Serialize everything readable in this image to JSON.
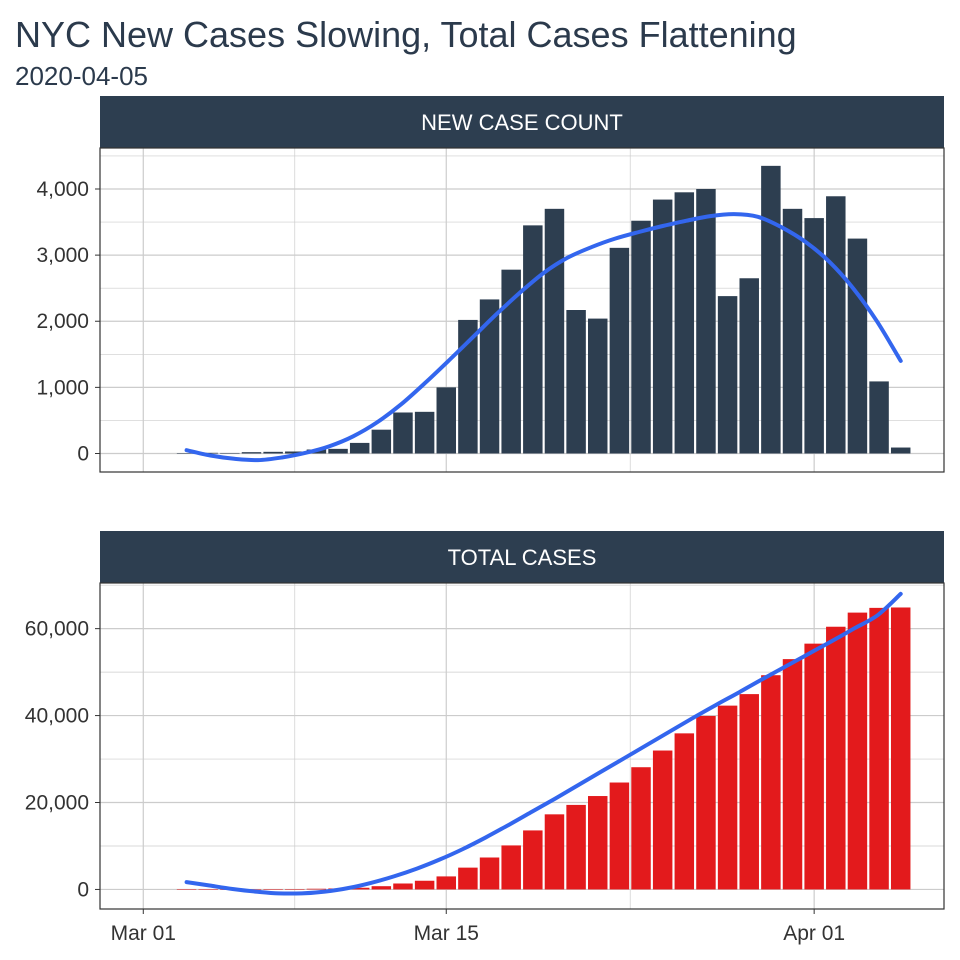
{
  "title": "NYC New Cases Slowing, Total Cases Flattening",
  "subtitle": "2020-04-05",
  "colors": {
    "strip": "#2d3e50",
    "new_bar": "#2d3e50",
    "total_bar": "#e31a1c",
    "smooth": "#3366ee",
    "grid": "#cccccc",
    "border": "#333333"
  },
  "chart_data": [
    {
      "type": "bar",
      "panel": "NEW CASE COUNT",
      "x": [
        "2020-03-03",
        "2020-03-04",
        "2020-03-05",
        "2020-03-06",
        "2020-03-07",
        "2020-03-08",
        "2020-03-09",
        "2020-03-10",
        "2020-03-11",
        "2020-03-12",
        "2020-03-13",
        "2020-03-14",
        "2020-03-15",
        "2020-03-16",
        "2020-03-17",
        "2020-03-18",
        "2020-03-19",
        "2020-03-20",
        "2020-03-21",
        "2020-03-22",
        "2020-03-23",
        "2020-03-24",
        "2020-03-25",
        "2020-03-26",
        "2020-03-27",
        "2020-03-28",
        "2020-03-29",
        "2020-03-30",
        "2020-03-31",
        "2020-04-01",
        "2020-04-02",
        "2020-04-03",
        "2020-04-04",
        "2020-04-05"
      ],
      "values": [
        5,
        10,
        8,
        20,
        25,
        30,
        60,
        70,
        160,
        360,
        620,
        630,
        1000,
        2020,
        2330,
        2780,
        3450,
        3700,
        2170,
        2040,
        3110,
        3520,
        3840,
        3950,
        4000,
        2380,
        2650,
        4350,
        3700,
        3560,
        3890,
        3250,
        1090,
        90
      ],
      "smooth": [
        50,
        -30,
        -80,
        -100,
        -60,
        10,
        110,
        260,
        470,
        740,
        1060,
        1400,
        1750,
        2100,
        2430,
        2730,
        2960,
        3120,
        3250,
        3350,
        3440,
        3520,
        3590,
        3620,
        3580,
        3420,
        3200,
        2900,
        2500,
        2000,
        1400
      ],
      "xlim": [
        "2020-02-28",
        "2020-04-07"
      ],
      "x_ticks": [
        "2020-03-01",
        "2020-03-15",
        "2020-04-01"
      ],
      "ylim": [
        -280,
        4620
      ],
      "y_ticks": [
        0,
        1000,
        2000,
        3000,
        4000
      ],
      "y_tick_labels": [
        "0",
        "1,000",
        "2,000",
        "3,000",
        "4,000"
      ]
    },
    {
      "type": "bar",
      "panel": "TOTAL CASES",
      "x": [
        "2020-03-03",
        "2020-03-04",
        "2020-03-05",
        "2020-03-06",
        "2020-03-07",
        "2020-03-08",
        "2020-03-09",
        "2020-03-10",
        "2020-03-11",
        "2020-03-12",
        "2020-03-13",
        "2020-03-14",
        "2020-03-15",
        "2020-03-16",
        "2020-03-17",
        "2020-03-18",
        "2020-03-19",
        "2020-03-20",
        "2020-03-21",
        "2020-03-22",
        "2020-03-23",
        "2020-03-24",
        "2020-03-25",
        "2020-03-26",
        "2020-03-27",
        "2020-03-28",
        "2020-03-29",
        "2020-03-30",
        "2020-03-31",
        "2020-04-01",
        "2020-04-02",
        "2020-04-03",
        "2020-04-04",
        "2020-04-05"
      ],
      "values": [
        5,
        15,
        23,
        43,
        68,
        98,
        158,
        228,
        388,
        748,
        1368,
        1998,
        2998,
        5018,
        7348,
        10128,
        13578,
        17278,
        19448,
        21488,
        24598,
        28118,
        31958,
        35908,
        39908,
        42288,
        44938,
        49288,
        52988,
        56548,
        60438,
        63688,
        64778,
        64868
      ],
      "smooth": [
        1700,
        900,
        100,
        -500,
        -900,
        -900,
        -500,
        300,
        1500,
        3000,
        4800,
        6900,
        9300,
        12000,
        14900,
        17900,
        20900,
        24000,
        27100,
        30200,
        33300,
        36400,
        39500,
        42500,
        45400,
        48400,
        51300,
        54200,
        57100,
        60100,
        63100,
        68000
      ],
      "xlim": [
        "2020-02-28",
        "2020-04-07"
      ],
      "x_ticks": [
        "2020-03-01",
        "2020-03-15",
        "2020-04-01"
      ],
      "x_tick_labels": [
        "Mar 01",
        "Mar 15",
        "Apr 01"
      ],
      "ylim": [
        -4500,
        70500
      ],
      "y_ticks": [
        0,
        20000,
        40000,
        60000
      ],
      "y_tick_labels": [
        "0",
        "20,000",
        "40,000",
        "60,000"
      ]
    }
  ]
}
